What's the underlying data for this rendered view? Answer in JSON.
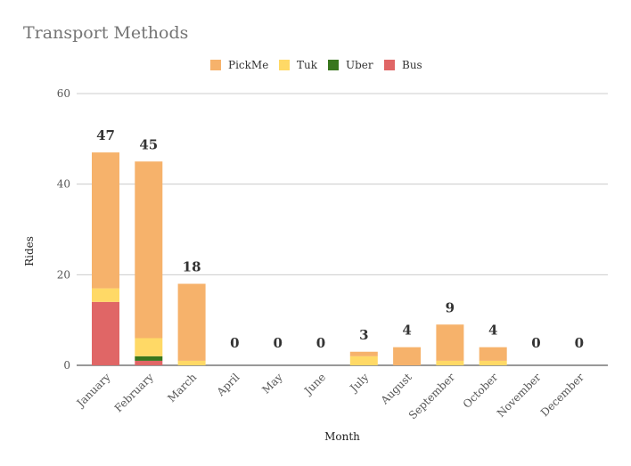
{
  "chart_data": {
    "type": "bar",
    "stacked": true,
    "title": "Transport Methods",
    "xlabel": "Month",
    "ylabel": "Rides",
    "ylim": [
      0,
      60
    ],
    "yticks": [
      0,
      20,
      40,
      60
    ],
    "grid": true,
    "legend_position": "top",
    "categories": [
      "January",
      "February",
      "March",
      "April",
      "May",
      "June",
      "July",
      "August",
      "September",
      "October",
      "November",
      "December"
    ],
    "series": [
      {
        "name": "Bus",
        "color": "#e06666",
        "values": [
          14,
          1,
          0,
          0,
          0,
          0,
          0,
          0,
          0,
          0,
          0,
          0
        ]
      },
      {
        "name": "Uber",
        "color": "#38761d",
        "values": [
          0,
          1,
          0,
          0,
          0,
          0,
          0,
          0,
          0,
          0,
          0,
          0
        ]
      },
      {
        "name": "Tuk",
        "color": "#ffd966",
        "values": [
          3,
          4,
          1,
          0,
          0,
          0,
          2,
          0,
          1,
          1,
          0,
          0
        ]
      },
      {
        "name": "PickMe",
        "color": "#f6b26b",
        "values": [
          30,
          39,
          17,
          0,
          0,
          0,
          1,
          4,
          8,
          3,
          0,
          0
        ]
      }
    ],
    "legend_order": [
      "PickMe",
      "Tuk",
      "Uber",
      "Bus"
    ],
    "totals": [
      47,
      45,
      18,
      0,
      0,
      0,
      3,
      4,
      9,
      4,
      0,
      0
    ]
  }
}
